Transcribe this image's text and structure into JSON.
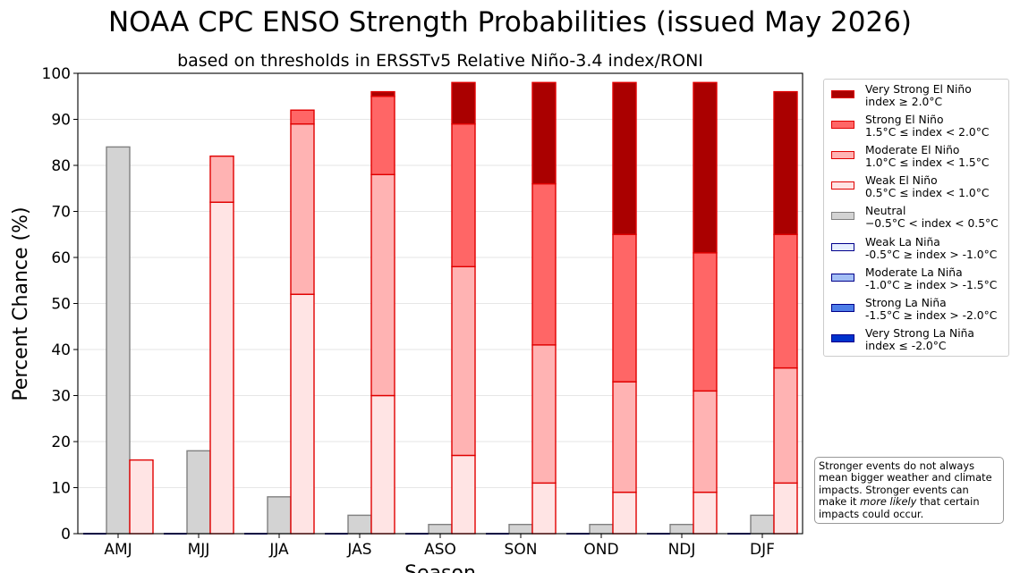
{
  "chart_data": {
    "type": "bar",
    "title": "NOAA CPC ENSO Strength Probabilities (issued May 2026)",
    "subtitle": "based on thresholds in ERSSTv5 Relative Niño-3.4 index/RONI",
    "xlabel": "Season",
    "ylabel": "Percent Chance (%)",
    "ylim": [
      0,
      100
    ],
    "yticks": [
      0,
      10,
      20,
      30,
      40,
      50,
      60,
      70,
      80,
      90,
      100
    ],
    "grid": true,
    "legend_position": "right",
    "categories": [
      "AMJ",
      "MJJ",
      "JJA",
      "JAS",
      "ASO",
      "SON",
      "OND",
      "NDJ",
      "DJF"
    ],
    "series": [
      {
        "name": "Very Strong La Niña",
        "desc": "index ≤ -2.0°C",
        "stack": "la_nina",
        "color": "#0033cc",
        "edge": "#00008b",
        "values": [
          0,
          0,
          0,
          0,
          0,
          0,
          0,
          0,
          0
        ]
      },
      {
        "name": "Strong La Niña",
        "desc": "-1.5°C ≥ index > -2.0°C",
        "stack": "la_nina",
        "color": "#4d7ee8",
        "edge": "#00008b",
        "values": [
          0,
          0,
          0,
          0,
          0,
          0,
          0,
          0,
          0
        ]
      },
      {
        "name": "Moderate La Niña",
        "desc": "-1.0°C ≥ index > -1.5°C",
        "stack": "la_nina",
        "color": "#a3bff5",
        "edge": "#00008b",
        "values": [
          0,
          0,
          0,
          0,
          0,
          0,
          0,
          0,
          0
        ]
      },
      {
        "name": "Weak La Niña",
        "desc": "-0.5°C ≥ index > -1.0°C",
        "stack": "la_nina",
        "color": "#e6eeff",
        "edge": "#00008b",
        "values": [
          0,
          0,
          0,
          0,
          0,
          0,
          0,
          0,
          0
        ]
      },
      {
        "name": "Neutral",
        "desc": "−0.5°C < index < 0.5°C",
        "stack": "neutral",
        "color": "#d3d3d3",
        "edge": "#808080",
        "values": [
          84,
          18,
          8,
          4,
          2,
          2,
          2,
          2,
          4
        ]
      },
      {
        "name": "Weak El Niño",
        "desc": "0.5°C ≤ index < 1.0°C",
        "stack": "el_nino",
        "color": "#ffe4e4",
        "edge": "#e00000",
        "values": [
          16,
          72,
          52,
          30,
          17,
          11,
          9,
          9,
          11
        ]
      },
      {
        "name": "Moderate El Niño",
        "desc": "1.0°C ≤ index < 1.5°C",
        "stack": "el_nino",
        "color": "#ffb3b3",
        "edge": "#e00000",
        "values": [
          0,
          10,
          37,
          48,
          41,
          30,
          24,
          22,
          25
        ]
      },
      {
        "name": "Strong El Niño",
        "desc": "1.5°C ≤ index < 2.0°C",
        "stack": "el_nino",
        "color": "#ff6666",
        "edge": "#e00000",
        "values": [
          0,
          0,
          3,
          17,
          31,
          35,
          32,
          30,
          29
        ]
      },
      {
        "name": "Very Strong El Niño",
        "desc": "index ≥ 2.0°C",
        "stack": "el_nino",
        "color": "#aa0000",
        "edge": "#e00000",
        "values": [
          0,
          0,
          0,
          1,
          9,
          22,
          33,
          37,
          31
        ]
      }
    ],
    "legend_order": [
      "Very Strong El Niño",
      "Strong El Niño",
      "Moderate El Niño",
      "Weak El Niño",
      "Neutral",
      "Weak La Niña",
      "Moderate La Niña",
      "Strong La Niña",
      "Very Strong La Niña"
    ],
    "annotation": {
      "before": "Stronger events do not always mean bigger weather and climate impacts. Stronger events can make it ",
      "emph": "more likely",
      "after": " that certain impacts could occur."
    }
  }
}
